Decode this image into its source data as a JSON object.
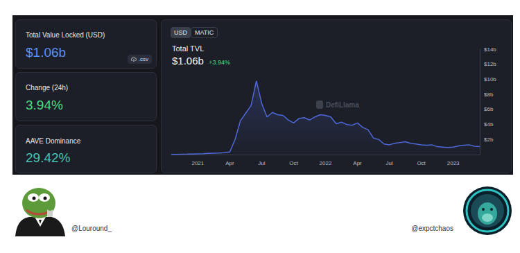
{
  "stats": [
    {
      "label": "Total Value Locked (USD)",
      "value": "$1.06b"
    },
    {
      "label": "Change (24h)",
      "value": "3.94%"
    },
    {
      "label": "AAVE Dominance",
      "value": "29.42%"
    }
  ],
  "csv_button": ".csv",
  "toggle": [
    "USD",
    "MATIC"
  ],
  "header": {
    "title": "Total TVL",
    "value": "$1.06b",
    "change": "+3.94%"
  },
  "watermark": "DefiLlama",
  "handles": [
    "@Louround_",
    "@expctchaos"
  ],
  "chart_data": {
    "type": "area",
    "categories": [
      null,
      null,
      null,
      null,
      null,
      "2021",
      null,
      null,
      null,
      null,
      null,
      "Apr",
      null,
      null,
      null,
      null,
      null,
      "Jul",
      null,
      null,
      null,
      null,
      null,
      "Oct",
      null,
      null,
      null,
      null,
      null,
      "2022",
      null,
      null,
      null,
      null,
      null,
      "Apr",
      null,
      null,
      null,
      null,
      null,
      "Jul",
      null,
      null,
      null,
      null,
      null,
      "Oct",
      null,
      null,
      null,
      null,
      null,
      "2023",
      null,
      null,
      null,
      null,
      null
    ],
    "values": [
      0.02,
      0.03,
      0.05,
      0.06,
      0.08,
      0.1,
      0.12,
      0.15,
      0.18,
      0.2,
      0.25,
      0.35,
      2.0,
      4.5,
      5.5,
      6.5,
      9.8,
      6.8,
      5.0,
      5.6,
      5.3,
      5.2,
      4.6,
      4.2,
      4.8,
      4.9,
      4.6,
      5.0,
      5.3,
      5.2,
      5.0,
      4.1,
      4.3,
      4.0,
      3.9,
      4.2,
      3.6,
      3.3,
      2.2,
      2.0,
      1.4,
      1.3,
      1.5,
      1.6,
      1.7,
      1.5,
      1.4,
      1.3,
      1.25,
      1.3,
      1.05,
      1.0,
      0.95,
      1.0,
      1.15,
      1.25,
      1.3,
      1.1,
      1.06
    ],
    "color": "#4f68d9",
    "ylim": [
      0,
      14
    ],
    "yticks": [
      {
        "value": 2,
        "label": "$2b"
      },
      {
        "value": 4,
        "label": "$4b"
      },
      {
        "value": 6,
        "label": "$6b"
      },
      {
        "value": 8,
        "label": "$8b"
      },
      {
        "value": 10,
        "label": "$10b"
      },
      {
        "value": 12,
        "label": "$12b"
      },
      {
        "value": 14,
        "label": "$14b"
      }
    ],
    "grid": false,
    "annotations": [
      {
        "y": 1.06,
        "label": "$1.06b"
      }
    ]
  }
}
